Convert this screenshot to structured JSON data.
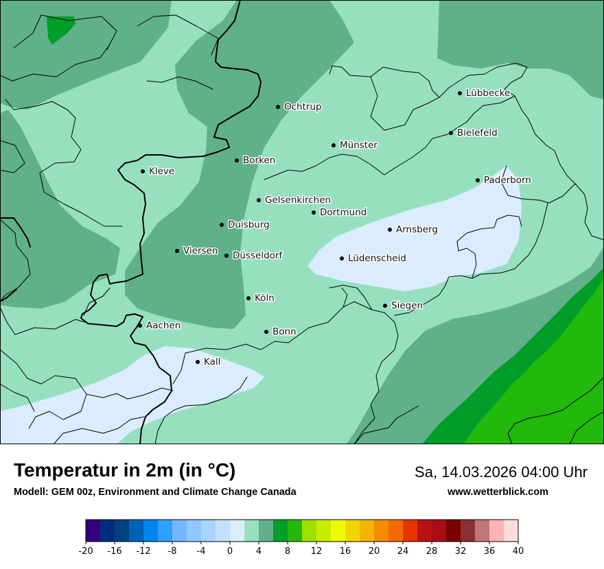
{
  "map": {
    "cities": [
      {
        "name": "Ochtrup"
      },
      {
        "name": "Lübbecke"
      },
      {
        "name": "Bielefeld"
      },
      {
        "name": "Münster"
      },
      {
        "name": "Borken"
      },
      {
        "name": "Kleve"
      },
      {
        "name": "Paderborn"
      },
      {
        "name": "Gelsenkirchen"
      },
      {
        "name": "Dortmund"
      },
      {
        "name": "Duisburg"
      },
      {
        "name": "Arnsberg"
      },
      {
        "name": "Viersen"
      },
      {
        "name": "Düsseldorf"
      },
      {
        "name": "Lüdenscheid"
      },
      {
        "name": "Köln"
      },
      {
        "name": "Siegen"
      },
      {
        "name": "Aachen"
      },
      {
        "name": "Bonn"
      },
      {
        "name": "Kall"
      }
    ]
  },
  "header": {
    "title": "Temperatur in 2m (in °C)",
    "model": "Modell: GEM 00z, Environment and Climate Change Canada",
    "datetime": "Sa, 14.03.2026 04:00 Uhr",
    "website": "www.wetterblick.com"
  },
  "legend": {
    "ticks": [
      "-20",
      "-16",
      "-12",
      "-8",
      "-4",
      "0",
      "4",
      "8",
      "12",
      "16",
      "20",
      "24",
      "28",
      "32",
      "36",
      "40"
    ],
    "colors": [
      "#33007f",
      "#002d7f",
      "#00417f",
      "#0061b8",
      "#0084ee",
      "#2ea0ff",
      "#73b8ff",
      "#8fc7ff",
      "#a8d3ff",
      "#c2e0ff",
      "#dbecff",
      "#96e0c0",
      "#60b08a",
      "#009e28",
      "#23b80c",
      "#9ee000",
      "#c8eb00",
      "#f0f900",
      "#f2d500",
      "#f2b400",
      "#f28c00",
      "#f26900",
      "#e63300",
      "#b81214",
      "#a80d14",
      "#780000",
      "#8c3131",
      "#c47575",
      "#ffb3b3",
      "#ffdcdc"
    ]
  }
}
